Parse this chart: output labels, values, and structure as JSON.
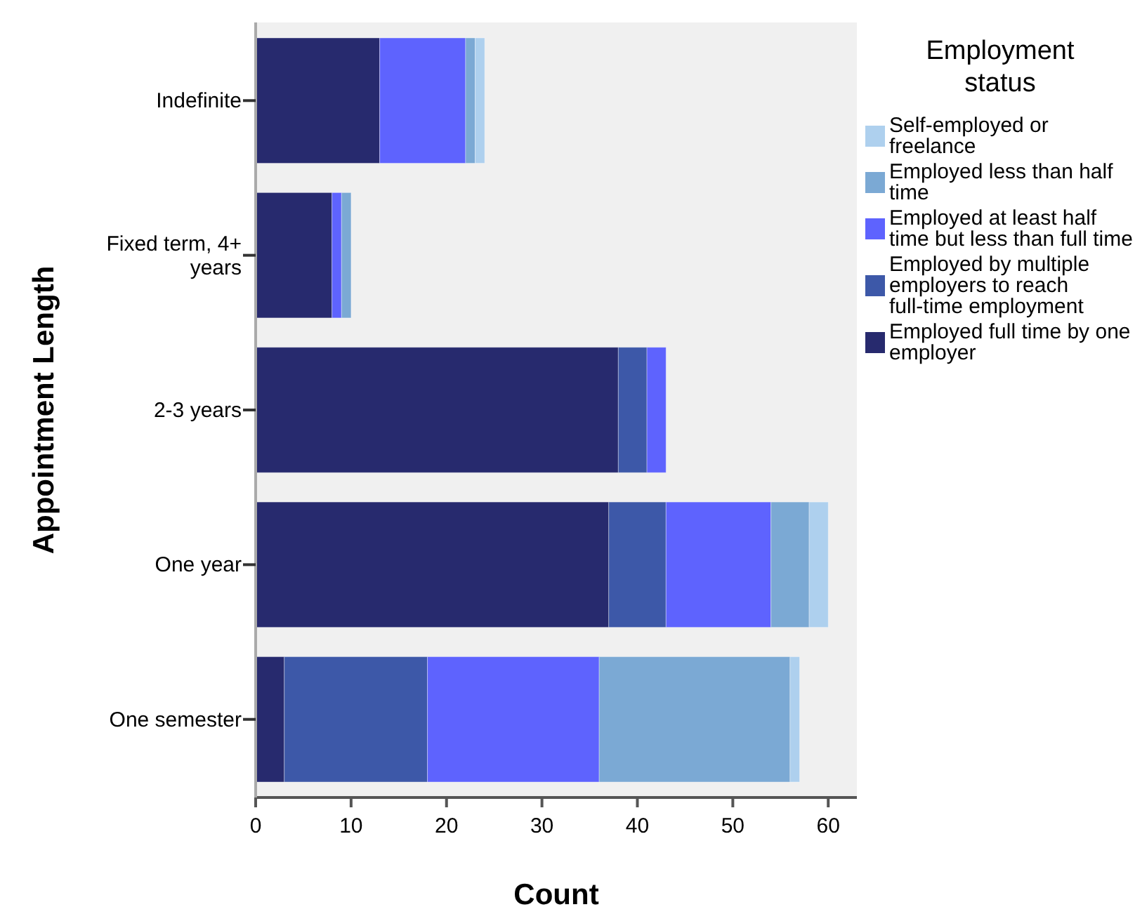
{
  "chart_data": {
    "type": "bar",
    "orientation": "horizontal",
    "stacked": true,
    "xlabel": "Count",
    "ylabel": "Appointment Length",
    "legend_title": "Employment status",
    "legend": "right",
    "grid": false,
    "categories": [
      "Indefinite",
      "Fixed term, 4+ years",
      "2-3 years",
      "One year",
      "One semester"
    ],
    "xlim": [
      0,
      63
    ],
    "xticks": [
      0,
      10,
      20,
      30,
      40,
      50,
      60
    ],
    "series": [
      {
        "name": "Employed full time by one employer",
        "color": "#272a6e",
        "values": [
          13,
          8,
          38,
          37,
          3
        ]
      },
      {
        "name": "Employed by multiple employers to reach full-time employment",
        "color": "#3d58a8",
        "values": [
          0,
          0,
          3,
          6,
          15
        ]
      },
      {
        "name": "Employed at least half time but less than full time",
        "color": "#5e63fe",
        "values": [
          9,
          1,
          2,
          11,
          18
        ]
      },
      {
        "name": "Employed less than half time",
        "color": "#7ba9d4",
        "values": [
          1,
          1,
          0,
          4,
          20
        ]
      },
      {
        "name": "Self-employed or freelance",
        "color": "#aed0ee",
        "values": [
          1,
          0,
          0,
          2,
          1
        ]
      }
    ]
  }
}
